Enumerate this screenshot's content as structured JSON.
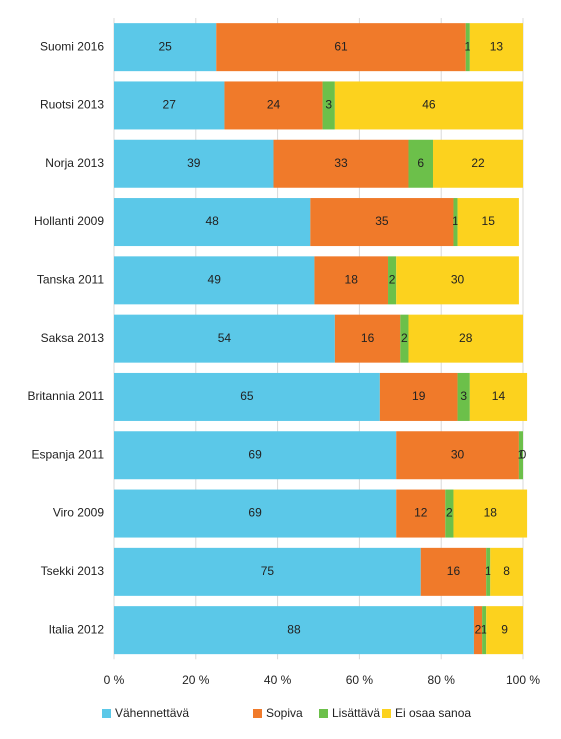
{
  "chart_data": {
    "type": "stacked-bar-horizontal",
    "categories": [
      "Suomi 2016",
      "Ruotsi 2013",
      "Norja 2013",
      "Hollanti 2009",
      "Tanska 2011",
      "Saksa 2013",
      "Britannia 2011",
      "Espanja 2011",
      "Viro 2009",
      "Tsekki 2013",
      "Italia 2012"
    ],
    "series": [
      {
        "name": "Vähennettävä",
        "color": "#5bc8e8",
        "values": [
          25,
          27,
          39,
          48,
          49,
          54,
          65,
          69,
          69,
          75,
          88
        ]
      },
      {
        "name": "Sopiva",
        "color": "#f07a2a",
        "values": [
          61,
          24,
          33,
          35,
          18,
          16,
          19,
          30,
          12,
          16,
          2
        ]
      },
      {
        "name": "Lisättävä",
        "color": "#6cc04a",
        "values": [
          1,
          3,
          6,
          1,
          2,
          2,
          3,
          1,
          2,
          1,
          1
        ]
      },
      {
        "name": "Ei osaa sanoa",
        "color": "#fcd21e",
        "values": [
          13,
          46,
          22,
          15,
          30,
          28,
          14,
          0,
          18,
          8,
          9
        ]
      }
    ],
    "xlim": [
      0,
      100
    ],
    "xticks": [
      {
        "value": 0,
        "label": "0 %"
      },
      {
        "value": 20,
        "label": "20 %"
      },
      {
        "value": 40,
        "label": "40 %"
      },
      {
        "value": 60,
        "label": "60 %"
      },
      {
        "value": 80,
        "label": "80 %"
      },
      {
        "value": 100,
        "label": "100 %"
      }
    ],
    "grid": true,
    "legend": "bottom"
  }
}
